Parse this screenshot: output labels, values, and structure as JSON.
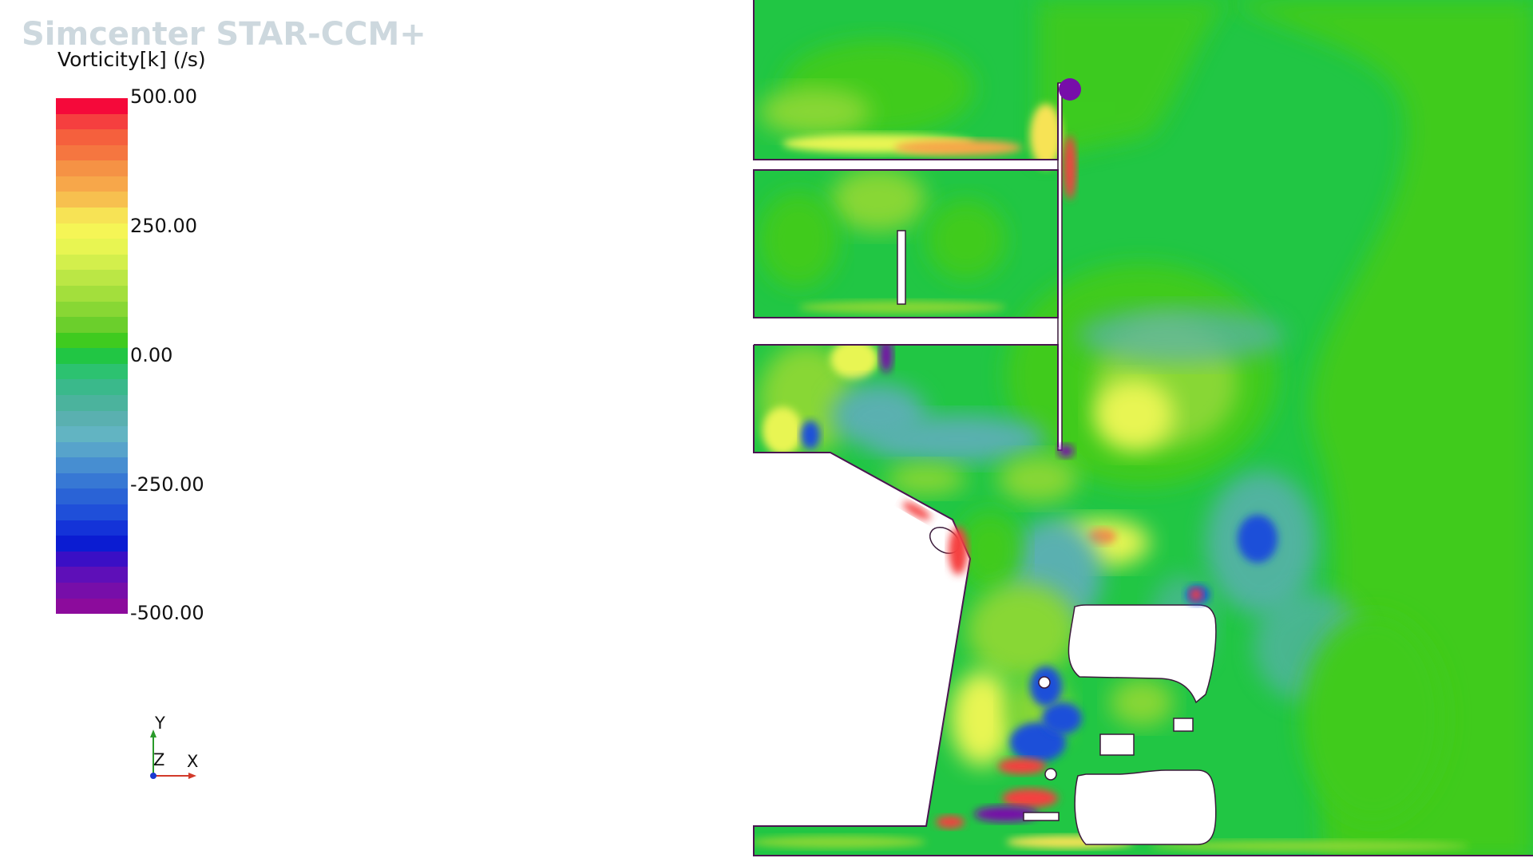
{
  "app": {
    "title": "Simcenter STAR-CCM+"
  },
  "legend": {
    "title": "Vorticity[k] (/s)",
    "ticks": [
      {
        "value": 500,
        "label": "500.00"
      },
      {
        "value": 250,
        "label": "250.00"
      },
      {
        "value": 0,
        "label": "0.00"
      },
      {
        "value": -250,
        "label": "-250.00"
      },
      {
        "value": -500,
        "label": "-500.00"
      }
    ],
    "range": [
      -500,
      500
    ],
    "colors": [
      "#f5093a",
      "#f53f3f",
      "#f5603d",
      "#f57640",
      "#f59245",
      "#f7a74a",
      "#f7c04f",
      "#f7e355",
      "#f5f556",
      "#e8f552",
      "#d3ef4c",
      "#bbe745",
      "#a3df3c",
      "#88d734",
      "#6bcf2c",
      "#3fcb1f",
      "#21c644",
      "#2cc270",
      "#3ab98b",
      "#4bb39d",
      "#5ab0b0",
      "#62b4c2",
      "#57a3cb",
      "#478ed1",
      "#3778d4",
      "#2a63d6",
      "#1f4fd9",
      "#1433d8",
      "#0b1cd2",
      "#3a0fc5",
      "#5e0fb8",
      "#770ea9",
      "#8c0b9c"
    ]
  },
  "triad": {
    "y": "Y",
    "z": "Z",
    "x": "X"
  },
  "scene": {
    "field_colors": {
      "background": "#21c644",
      "mid": "#3fcb1f",
      "light": "#88d734",
      "yellow": "#e8f552",
      "blue": "#5ab0b0",
      "deepblue": "#1f4fd9",
      "purple": "#770ea9",
      "red": "#f53f3f"
    }
  }
}
